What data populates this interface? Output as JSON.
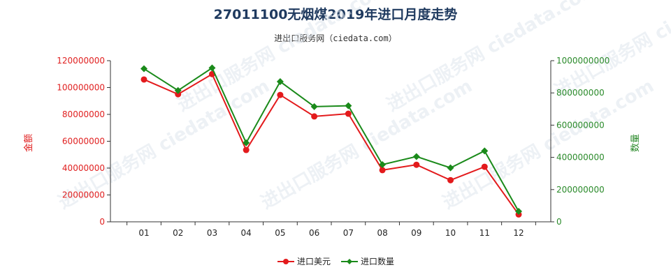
{
  "title": "27011100无烟煤2019年进口月度走势",
  "subtitle": "进出口服务网（ciedata.com）",
  "watermark": "进出口服务网 ciedata.com",
  "chart_data": {
    "type": "line",
    "categories": [
      "01",
      "02",
      "03",
      "04",
      "05",
      "06",
      "07",
      "08",
      "09",
      "10",
      "11",
      "12"
    ],
    "y_left": {
      "label": "金额",
      "range": [
        0,
        120000000
      ],
      "ticks": [
        0,
        20000000,
        40000000,
        60000000,
        80000000,
        100000000,
        120000000
      ],
      "tick_labels": [
        "0",
        "20000000",
        "40000000",
        "60000000",
        "80000000",
        "100000000",
        "120000000"
      ]
    },
    "y_right": {
      "label": "数量",
      "range": [
        0,
        1000000000
      ],
      "ticks": [
        0,
        200000000,
        400000000,
        600000000,
        800000000,
        1000000000
      ],
      "tick_labels": [
        "0",
        "200000000",
        "400000000",
        "600000000",
        "800000000",
        "1000000000"
      ]
    },
    "series": [
      {
        "name": "进口美元",
        "axis": "left",
        "color": "#e31a1c",
        "values": [
          106000000,
          95000000,
          110000000,
          53500000,
          94500000,
          78500000,
          80500000,
          38500000,
          42500000,
          31000000,
          41000000,
          5500000
        ]
      },
      {
        "name": "进口数量",
        "axis": "right",
        "color": "#1a8a1a",
        "values": [
          950000000,
          815000000,
          955000000,
          490000000,
          870000000,
          715000000,
          720000000,
          355000000,
          405000000,
          335000000,
          440000000,
          65000000
        ]
      }
    ],
    "legend_position": "bottom-center",
    "grid": false
  }
}
